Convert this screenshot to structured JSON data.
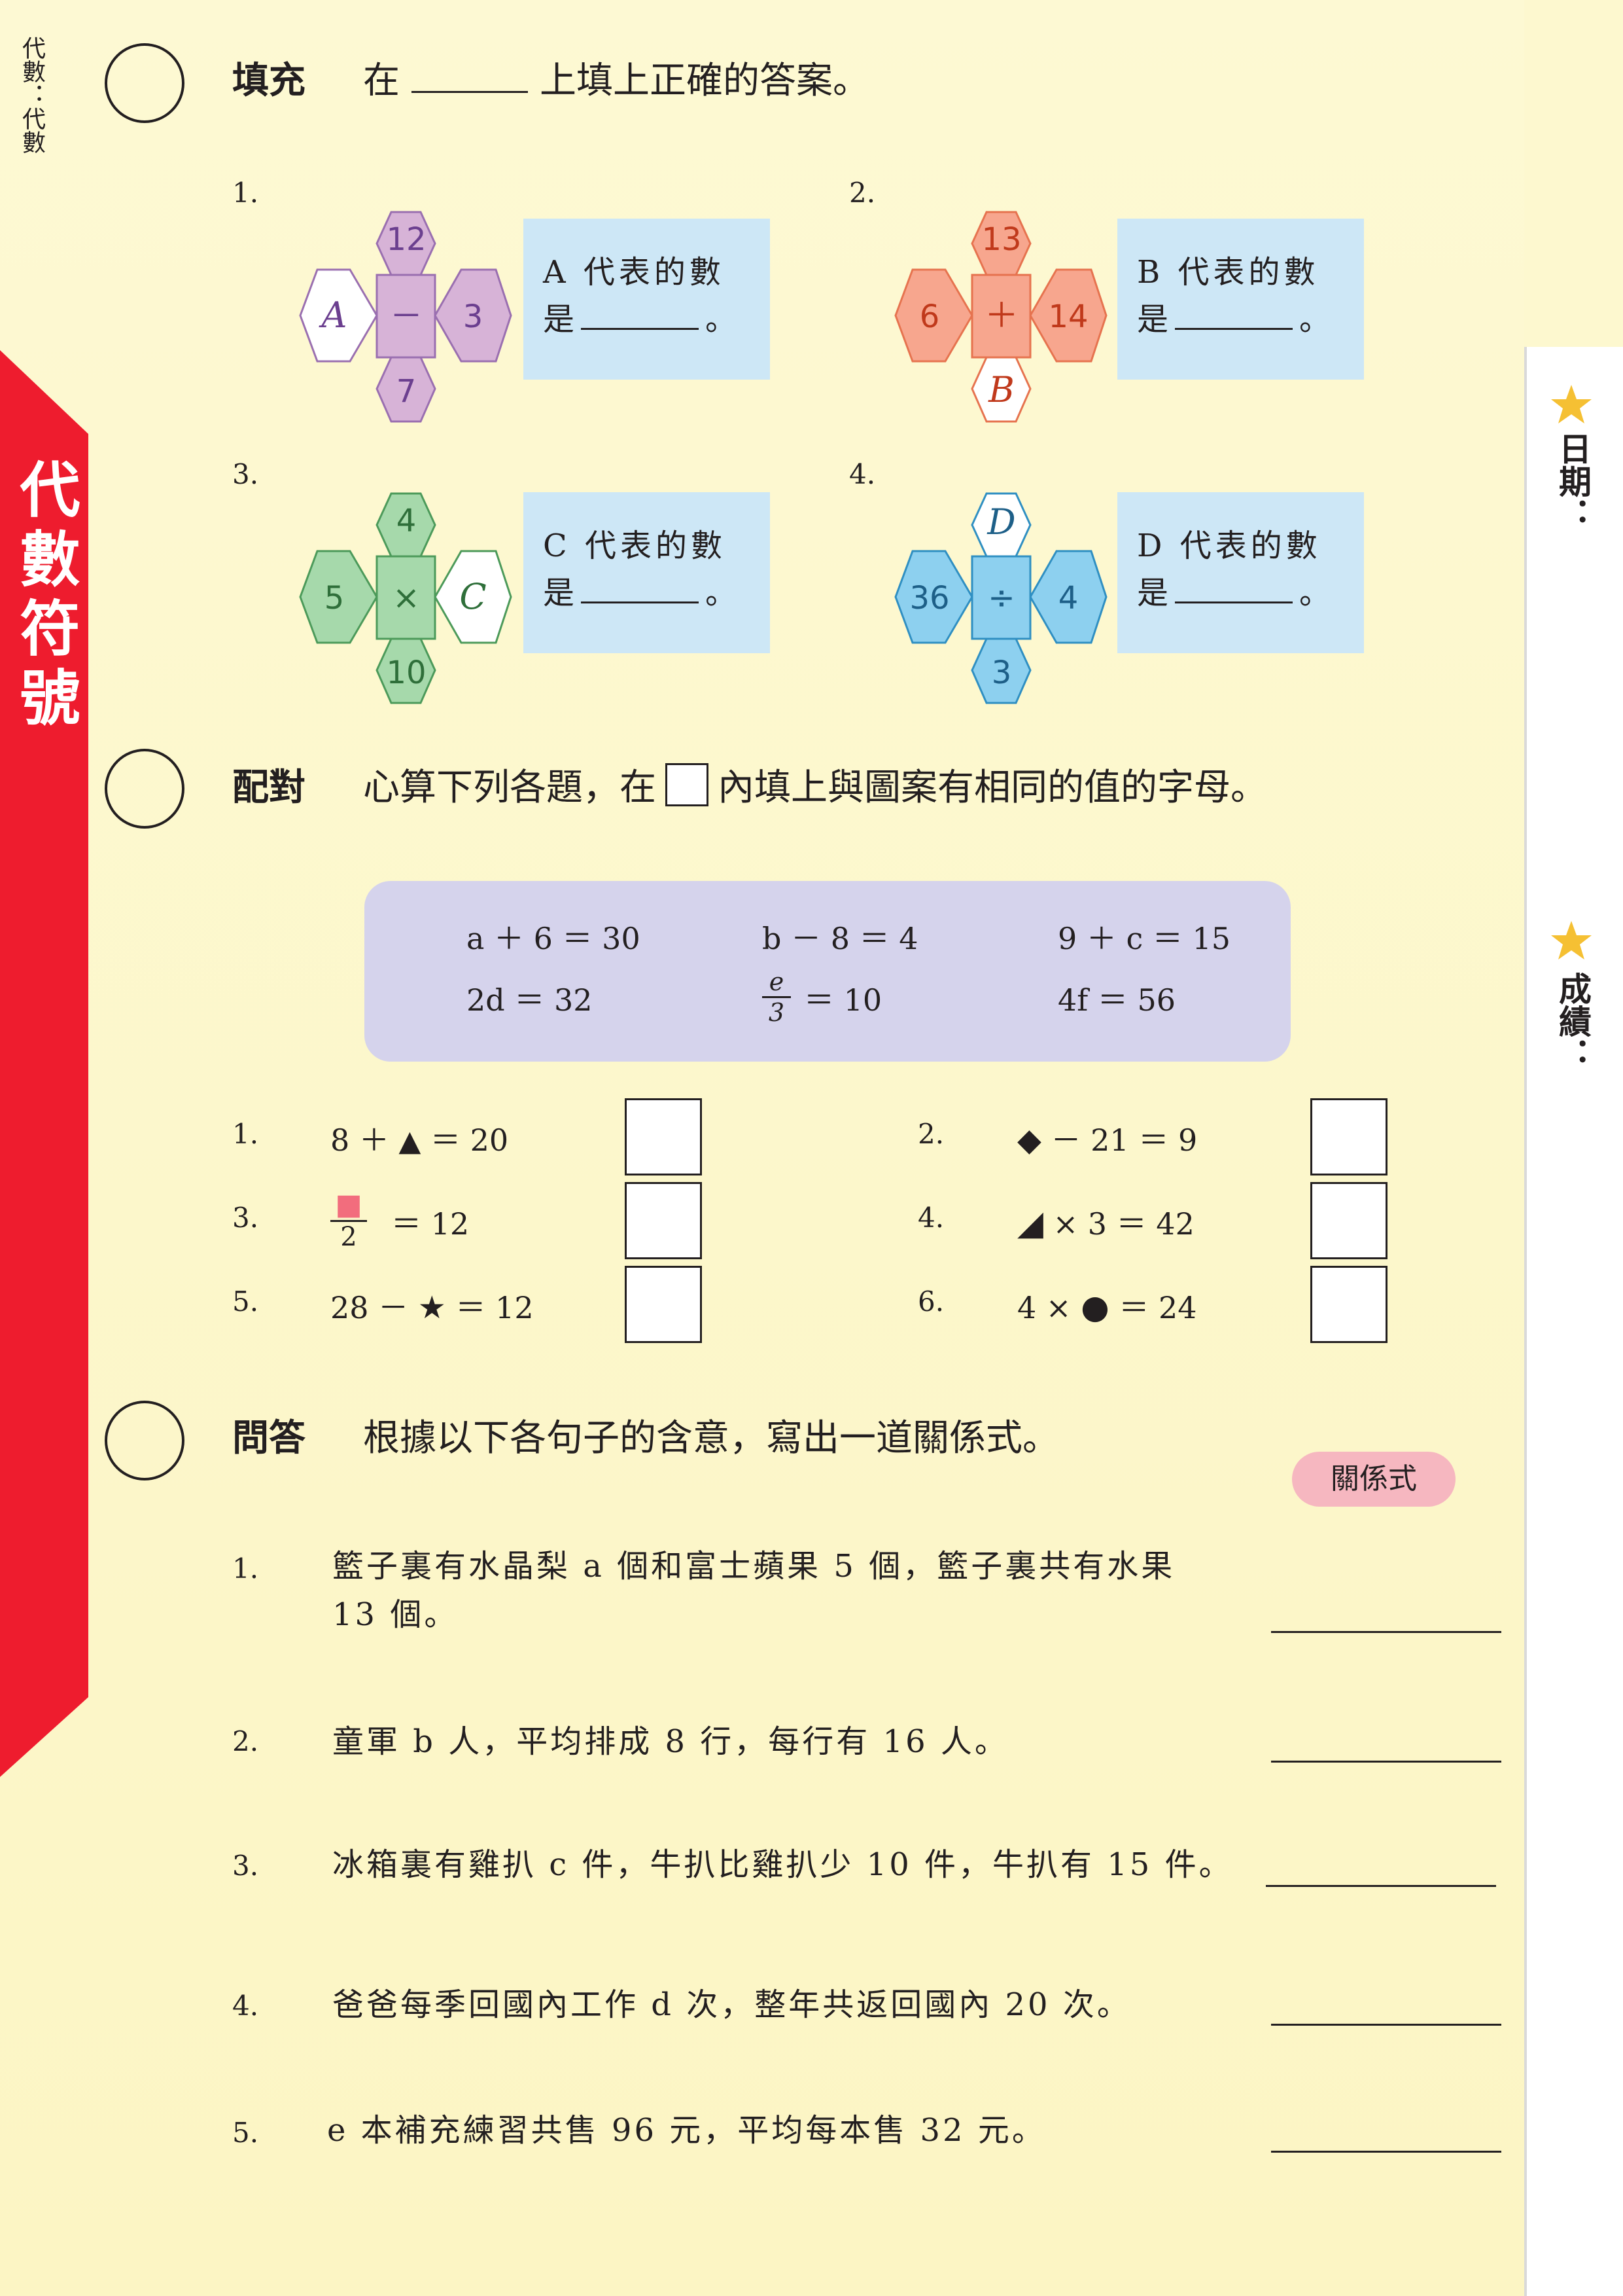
{
  "header": {
    "side_label": "代數：代數",
    "tab_label": "代數符號",
    "date_label": "日期：",
    "score_label": "成績："
  },
  "colors": {
    "red_tab": "#ee1c2e",
    "purple": "#d7b3d7",
    "orange": "#f7a68e",
    "green": "#a6d9ab",
    "blue": "#8dd0ef",
    "hint_bg": "#cde7f6",
    "eq_bg": "#d5d3ec",
    "pill": "#f6b7c0"
  },
  "section1": {
    "title": "填充",
    "instruction_pre": "在",
    "instruction_post": "上填上正確的答案。",
    "items": [
      {
        "num": "1.",
        "top": "12",
        "left": "A",
        "center": "－",
        "right": "3",
        "bottom": "7",
        "hint_line1": "A 代表的數",
        "hint_pre": "是",
        "hint_post": "。"
      },
      {
        "num": "2.",
        "top": "13",
        "left": "6",
        "center": "＋",
        "right": "14",
        "bottom": "B",
        "hint_line1": "B 代表的數",
        "hint_pre": "是",
        "hint_post": "。"
      },
      {
        "num": "3.",
        "top": "4",
        "left": "5",
        "center": "×",
        "right": "C",
        "bottom": "10",
        "hint_line1": "C 代表的數",
        "hint_pre": "是",
        "hint_post": "。"
      },
      {
        "num": "4.",
        "top": "D",
        "left": "36",
        "center": "÷",
        "right": "4",
        "bottom": "3",
        "hint_line1": "D 代表的數",
        "hint_pre": "是",
        "hint_post": "。"
      }
    ]
  },
  "section2": {
    "title": "配對",
    "instruction_pre": "心算下列各題，在",
    "instruction_post": "內填上與圖案有相同的值的字母。",
    "equations": [
      "a ＋ 6 ＝ 30",
      "b － 8 ＝ 4",
      "9 ＋ c ＝ 15",
      "2d ＝ 32",
      "＝ 10",
      "4f ＝ 56"
    ],
    "frac_e": {
      "num": "e",
      "den": "3"
    },
    "items": [
      {
        "num": "1.",
        "pre": "8 ＋",
        "shape": "▲",
        "post": "＝ 20"
      },
      {
        "num": "2.",
        "pre": "",
        "shape": "◆",
        "post": "－ 21 ＝ 9"
      },
      {
        "num": "3.",
        "pre": "",
        "shape": "■",
        "den": "2",
        "post": "＝ 12"
      },
      {
        "num": "4.",
        "pre": "",
        "shape": "◢",
        "post": "× 3 ＝ 42"
      },
      {
        "num": "5.",
        "pre": "28 －",
        "shape": "★",
        "post": "＝ 12"
      },
      {
        "num": "6.",
        "pre": "4 ×",
        "shape": "●",
        "post": "＝ 24"
      }
    ]
  },
  "section3": {
    "title": "問答",
    "instruction": "根據以下各句子的含意，寫出一道關係式。",
    "pill": "關係式",
    "items": [
      {
        "num": "1.",
        "line1": "籃子裏有水晶梨 a 個和富士蘋果 5 個，籃子裏共有水果",
        "line2": "13 個。"
      },
      {
        "num": "2.",
        "line1": "童軍 b 人，平均排成 8 行，每行有 16 人。",
        "line2": ""
      },
      {
        "num": "3.",
        "line1": "冰箱裏有雞扒 c 件，牛扒比雞扒少 10 件，牛扒有 15 件。",
        "line2": ""
      },
      {
        "num": "4.",
        "line1": "爸爸每季回國內工作 d 次，整年共返回國內 20 次。",
        "line2": ""
      },
      {
        "num": "5.",
        "line1": "e 本補充練習共售 96 元，平均每本售 32 元。",
        "line2": ""
      }
    ]
  }
}
